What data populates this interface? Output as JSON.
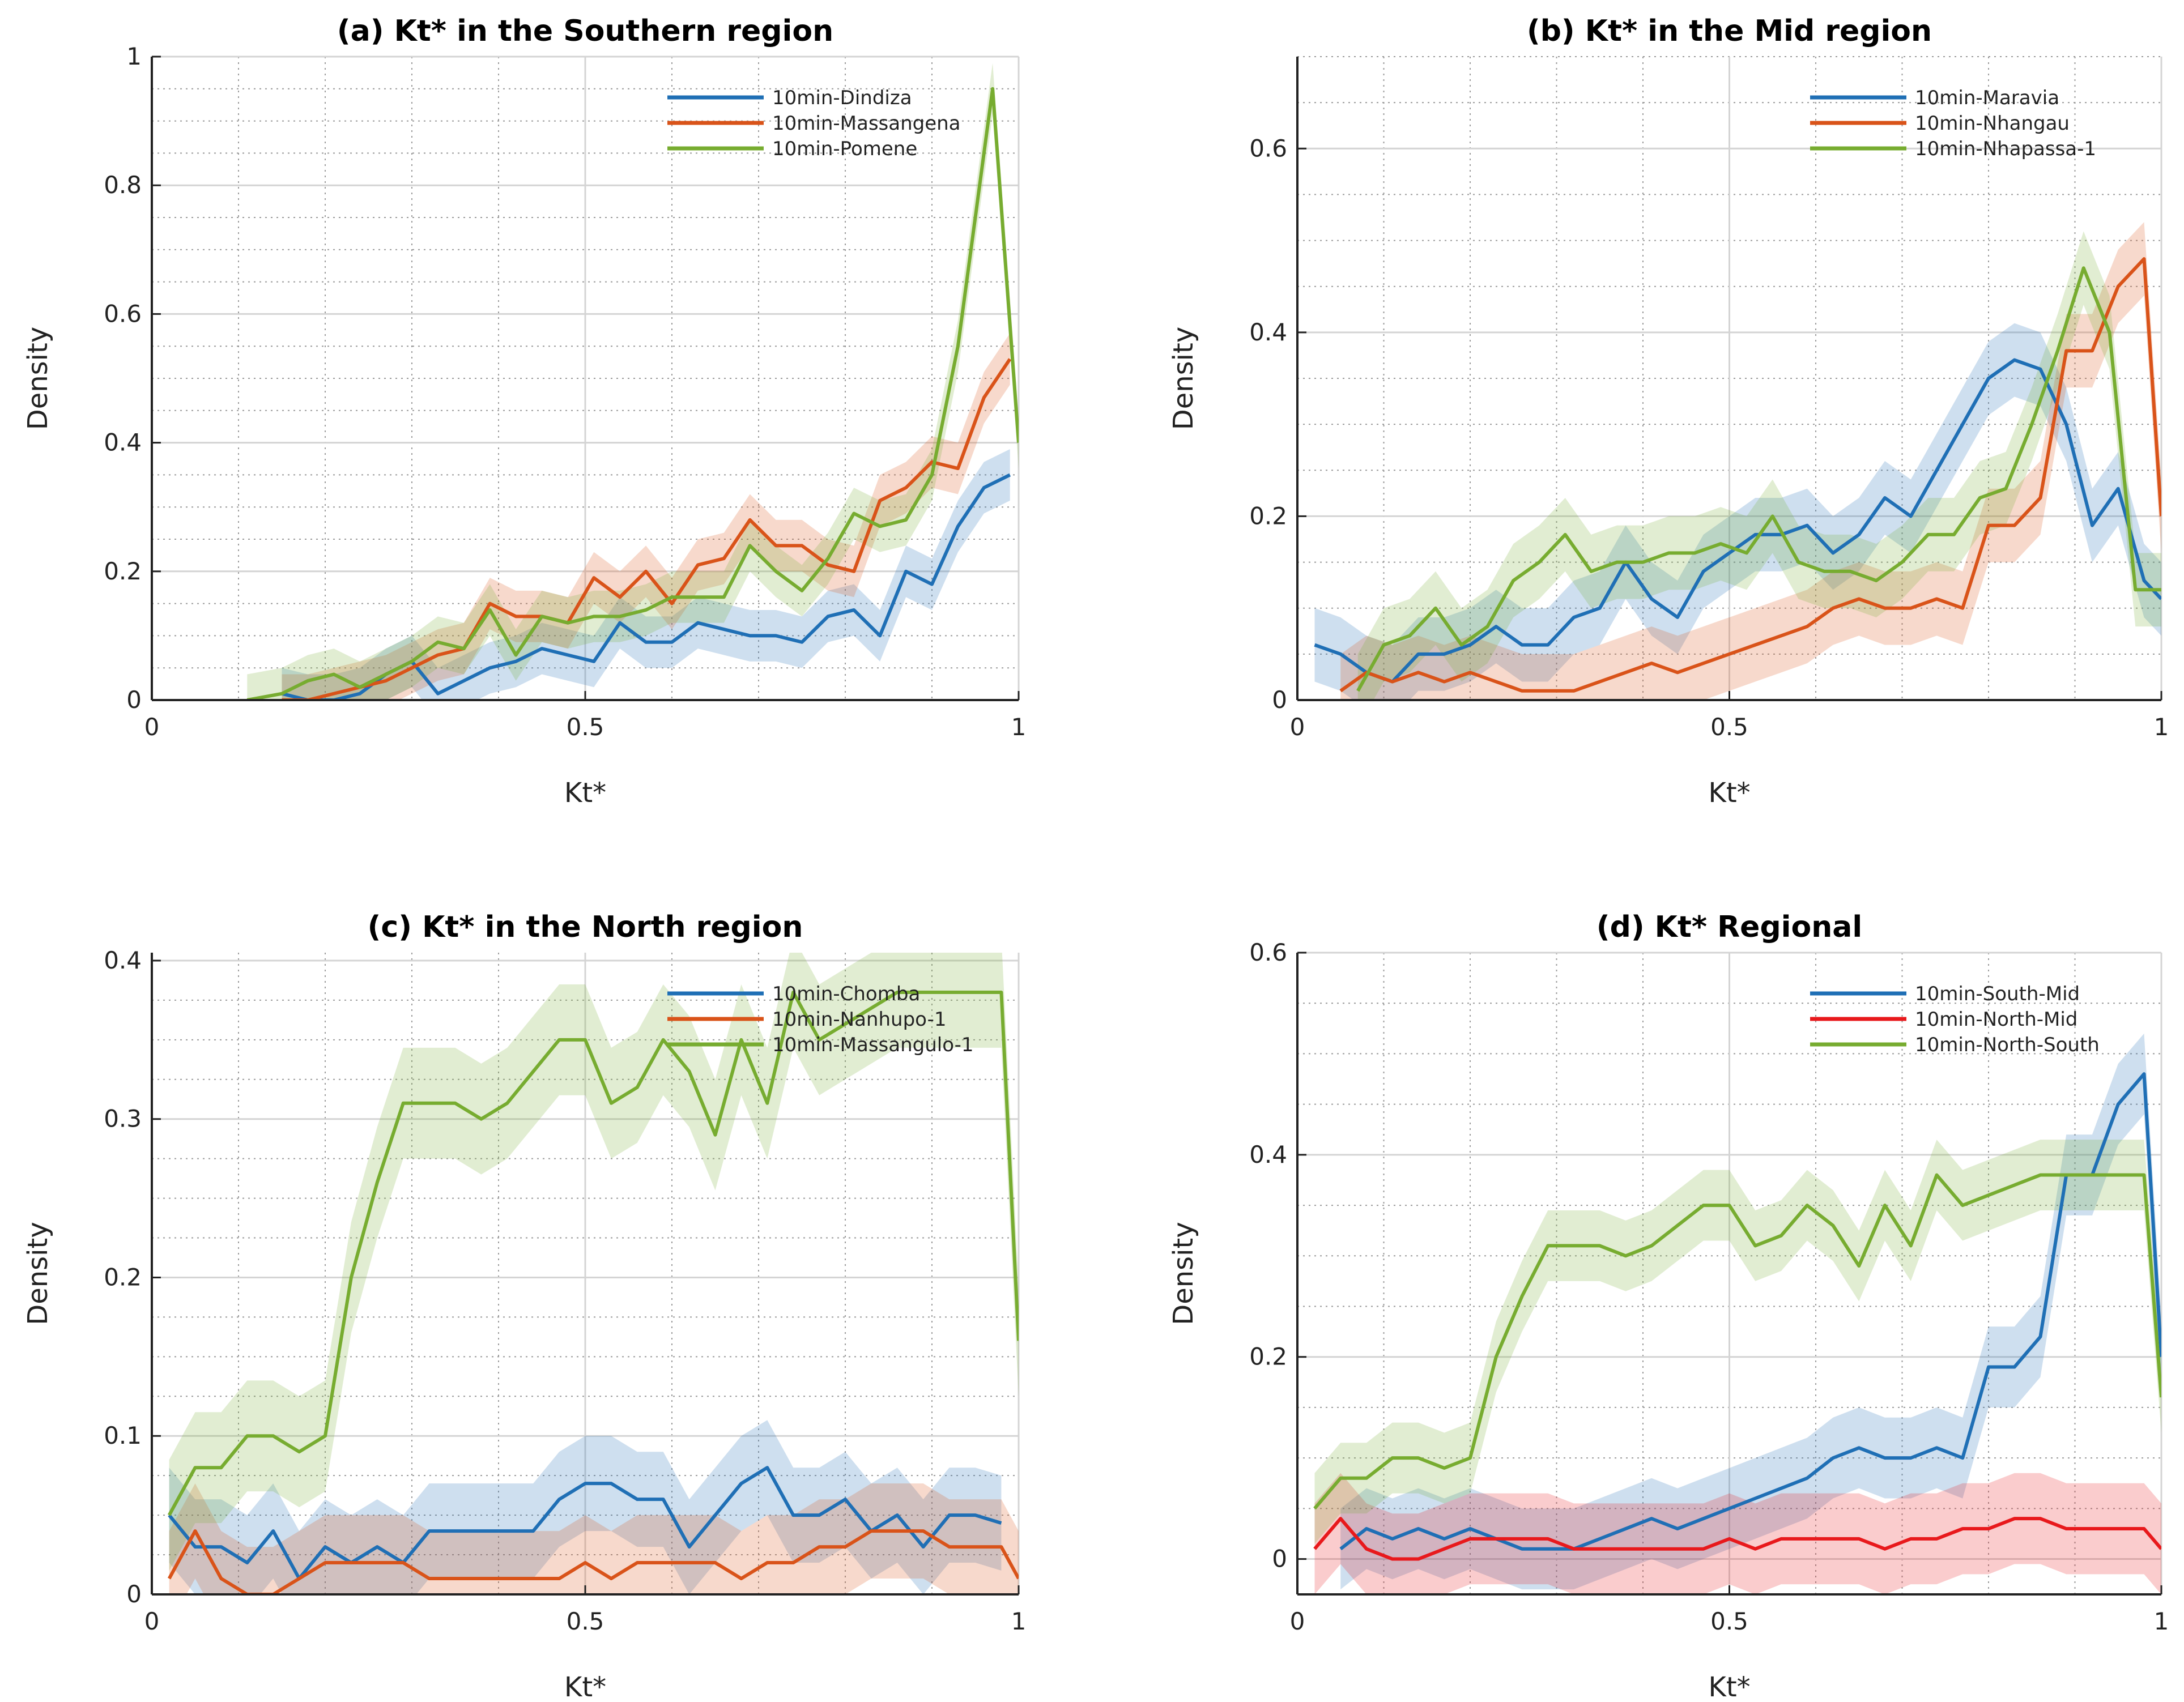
{
  "figure": {
    "panels_note": "2x2 grid of Kt* density plots with shaded confidence bands"
  },
  "chart_data": [
    {
      "type": "line",
      "title": "(a) Kt* in the Southern region",
      "xlabel": "Kt*",
      "ylabel": "Density",
      "xlim": [
        0,
        1
      ],
      "ylim": [
        0,
        1
      ],
      "xticks": [
        0,
        0.5,
        1
      ],
      "xtick_labels": [
        "0",
        "0.5",
        "1"
      ],
      "yticks": [
        0,
        0.2,
        0.4,
        0.6,
        0.8,
        1
      ],
      "ytick_labels": [
        "0",
        "0.2",
        "0.4",
        "0.6",
        "0.8",
        "1"
      ],
      "legend_position": "top-right",
      "series": [
        {
          "name": "10min-Dindiza",
          "color": "#1f6fb5",
          "band": 0.04,
          "x": [
            0.15,
            0.18,
            0.21,
            0.24,
            0.27,
            0.3,
            0.33,
            0.36,
            0.39,
            0.42,
            0.45,
            0.48,
            0.51,
            0.54,
            0.57,
            0.6,
            0.63,
            0.66,
            0.69,
            0.72,
            0.75,
            0.78,
            0.81,
            0.84,
            0.87,
            0.9,
            0.93,
            0.96,
            0.99
          ],
          "y": [
            0.01,
            0.0,
            0.0,
            0.01,
            0.04,
            0.06,
            0.01,
            0.03,
            0.05,
            0.06,
            0.08,
            0.07,
            0.06,
            0.12,
            0.09,
            0.09,
            0.12,
            0.11,
            0.1,
            0.1,
            0.09,
            0.13,
            0.14,
            0.1,
            0.2,
            0.18,
            0.27,
            0.33,
            0.35
          ]
        },
        {
          "name": "10min-Massangena",
          "color": "#d95319",
          "band": 0.04,
          "x": [
            0.15,
            0.18,
            0.21,
            0.24,
            0.27,
            0.3,
            0.33,
            0.36,
            0.39,
            0.42,
            0.45,
            0.48,
            0.51,
            0.54,
            0.57,
            0.6,
            0.63,
            0.66,
            0.69,
            0.72,
            0.75,
            0.78,
            0.81,
            0.84,
            0.87,
            0.9,
            0.93,
            0.96,
            0.99
          ],
          "y": [
            0.0,
            0.0,
            0.01,
            0.02,
            0.03,
            0.05,
            0.07,
            0.08,
            0.15,
            0.13,
            0.13,
            0.12,
            0.19,
            0.16,
            0.2,
            0.15,
            0.21,
            0.22,
            0.28,
            0.24,
            0.24,
            0.21,
            0.2,
            0.31,
            0.33,
            0.37,
            0.36,
            0.47,
            0.53
          ]
        },
        {
          "name": "10min-Pomene",
          "color": "#77ac30",
          "band": 0.04,
          "x": [
            0.11,
            0.15,
            0.18,
            0.21,
            0.24,
            0.27,
            0.3,
            0.33,
            0.36,
            0.39,
            0.42,
            0.45,
            0.48,
            0.51,
            0.54,
            0.57,
            0.6,
            0.63,
            0.66,
            0.69,
            0.72,
            0.75,
            0.78,
            0.81,
            0.84,
            0.87,
            0.9,
            0.93,
            0.97,
            1.0
          ],
          "y": [
            0.0,
            0.01,
            0.03,
            0.04,
            0.02,
            0.04,
            0.06,
            0.09,
            0.08,
            0.14,
            0.07,
            0.13,
            0.12,
            0.13,
            0.13,
            0.14,
            0.16,
            0.16,
            0.16,
            0.24,
            0.2,
            0.17,
            0.22,
            0.29,
            0.27,
            0.28,
            0.35,
            0.55,
            0.95,
            0.4
          ]
        }
      ]
    },
    {
      "type": "line",
      "title": "(b) Kt* in the Mid region",
      "xlabel": "Kt*",
      "ylabel": "Density",
      "xlim": [
        0,
        1
      ],
      "ylim": [
        0,
        0.7
      ],
      "xticks": [
        0,
        0.5,
        1
      ],
      "xtick_labels": [
        "0",
        "0.5",
        "1"
      ],
      "yticks": [
        0,
        0.2,
        0.4,
        0.6
      ],
      "ytick_labels": [
        "0",
        "0.2",
        "0.4",
        "0.6"
      ],
      "legend_position": "top-right",
      "series": [
        {
          "name": "10min-Maravia",
          "color": "#1f6fb5",
          "band": 0.04,
          "x": [
            0.02,
            0.05,
            0.08,
            0.11,
            0.14,
            0.17,
            0.2,
            0.23,
            0.26,
            0.29,
            0.32,
            0.35,
            0.38,
            0.41,
            0.44,
            0.47,
            0.5,
            0.53,
            0.56,
            0.59,
            0.62,
            0.65,
            0.68,
            0.71,
            0.74,
            0.77,
            0.8,
            0.83,
            0.86,
            0.89,
            0.92,
            0.95,
            0.98,
            1.0
          ],
          "y": [
            0.06,
            0.05,
            0.03,
            0.02,
            0.05,
            0.05,
            0.06,
            0.08,
            0.06,
            0.06,
            0.09,
            0.1,
            0.15,
            0.11,
            0.09,
            0.14,
            0.16,
            0.18,
            0.18,
            0.19,
            0.16,
            0.18,
            0.22,
            0.2,
            0.25,
            0.3,
            0.35,
            0.37,
            0.36,
            0.3,
            0.19,
            0.23,
            0.13,
            0.11
          ]
        },
        {
          "name": "10min-Nhangau",
          "color": "#d95319",
          "band": 0.04,
          "x": [
            0.05,
            0.08,
            0.11,
            0.14,
            0.17,
            0.2,
            0.23,
            0.26,
            0.29,
            0.32,
            0.35,
            0.38,
            0.41,
            0.44,
            0.47,
            0.5,
            0.53,
            0.56,
            0.59,
            0.62,
            0.65,
            0.68,
            0.71,
            0.74,
            0.77,
            0.8,
            0.83,
            0.86,
            0.89,
            0.92,
            0.95,
            0.98,
            1.0
          ],
          "y": [
            0.01,
            0.03,
            0.02,
            0.03,
            0.02,
            0.03,
            0.02,
            0.01,
            0.01,
            0.01,
            0.02,
            0.03,
            0.04,
            0.03,
            0.04,
            0.05,
            0.06,
            0.07,
            0.08,
            0.1,
            0.11,
            0.1,
            0.1,
            0.11,
            0.1,
            0.19,
            0.19,
            0.22,
            0.38,
            0.38,
            0.45,
            0.48,
            0.2
          ]
        },
        {
          "name": "10min-Nhapassa-1",
          "color": "#77ac30",
          "band": 0.04,
          "x": [
            0.07,
            0.1,
            0.13,
            0.16,
            0.19,
            0.22,
            0.25,
            0.28,
            0.31,
            0.34,
            0.37,
            0.4,
            0.43,
            0.46,
            0.49,
            0.52,
            0.55,
            0.58,
            0.61,
            0.64,
            0.67,
            0.7,
            0.73,
            0.76,
            0.79,
            0.82,
            0.85,
            0.88,
            0.91,
            0.94,
            0.97,
            1.0
          ],
          "y": [
            0.01,
            0.06,
            0.07,
            0.1,
            0.06,
            0.08,
            0.13,
            0.15,
            0.18,
            0.14,
            0.15,
            0.15,
            0.16,
            0.16,
            0.17,
            0.16,
            0.2,
            0.15,
            0.14,
            0.14,
            0.13,
            0.15,
            0.18,
            0.18,
            0.22,
            0.23,
            0.3,
            0.38,
            0.47,
            0.4,
            0.12,
            0.12
          ]
        }
      ]
    },
    {
      "type": "line",
      "title": "(c) Kt* in the North region",
      "xlabel": "Kt*",
      "ylabel": "Density",
      "xlim": [
        0,
        1
      ],
      "ylim": [
        0,
        0.405
      ],
      "xticks": [
        0,
        0.5,
        1
      ],
      "xtick_labels": [
        "0",
        "0.5",
        "1"
      ],
      "yticks": [
        0,
        0.1,
        0.2,
        0.3,
        0.4
      ],
      "ytick_labels": [
        "0",
        "0.1",
        "0.2",
        "0.3",
        "0.4"
      ],
      "legend_position": "top-right",
      "series": [
        {
          "name": "10min-Chomba",
          "color": "#1f6fb5",
          "band": 0.03,
          "x": [
            0.02,
            0.05,
            0.08,
            0.11,
            0.14,
            0.17,
            0.2,
            0.23,
            0.26,
            0.29,
            0.32,
            0.35,
            0.38,
            0.41,
            0.44,
            0.47,
            0.5,
            0.53,
            0.56,
            0.59,
            0.62,
            0.65,
            0.68,
            0.71,
            0.74,
            0.77,
            0.8,
            0.83,
            0.86,
            0.89,
            0.92,
            0.95,
            0.98
          ],
          "y": [
            0.05,
            0.03,
            0.03,
            0.02,
            0.04,
            0.01,
            0.03,
            0.02,
            0.03,
            0.02,
            0.04,
            0.04,
            0.04,
            0.04,
            0.04,
            0.06,
            0.07,
            0.07,
            0.06,
            0.06,
            0.03,
            0.05,
            0.07,
            0.08,
            0.05,
            0.05,
            0.06,
            0.04,
            0.05,
            0.03,
            0.05,
            0.05,
            0.045
          ]
        },
        {
          "name": "10min-Nanhupo-1",
          "color": "#d95319",
          "band": 0.03,
          "x": [
            0.02,
            0.05,
            0.08,
            0.11,
            0.14,
            0.17,
            0.2,
            0.23,
            0.26,
            0.29,
            0.32,
            0.35,
            0.38,
            0.41,
            0.44,
            0.47,
            0.5,
            0.53,
            0.56,
            0.59,
            0.62,
            0.65,
            0.68,
            0.71,
            0.74,
            0.77,
            0.8,
            0.83,
            0.86,
            0.89,
            0.92,
            0.95,
            0.98,
            1.0
          ],
          "y": [
            0.01,
            0.04,
            0.01,
            0.0,
            0.0,
            0.01,
            0.02,
            0.02,
            0.02,
            0.02,
            0.01,
            0.01,
            0.01,
            0.01,
            0.01,
            0.01,
            0.02,
            0.01,
            0.02,
            0.02,
            0.02,
            0.02,
            0.01,
            0.02,
            0.02,
            0.03,
            0.03,
            0.04,
            0.04,
            0.04,
            0.03,
            0.03,
            0.03,
            0.01
          ]
        },
        {
          "name": "10min-Massangulo-1",
          "color": "#77ac30",
          "band": 0.035,
          "x": [
            0.02,
            0.05,
            0.08,
            0.11,
            0.14,
            0.17,
            0.2,
            0.23,
            0.26,
            0.29,
            0.32,
            0.35,
            0.38,
            0.41,
            0.44,
            0.47,
            0.5,
            0.53,
            0.56,
            0.59,
            0.62,
            0.65,
            0.68,
            0.71,
            0.74,
            0.77,
            0.8,
            0.83,
            0.86,
            0.89,
            0.92,
            0.95,
            0.98,
            1.0
          ],
          "y": [
            0.05,
            0.08,
            0.08,
            0.1,
            0.1,
            0.09,
            0.1,
            0.2,
            0.26,
            0.31,
            0.31,
            0.31,
            0.3,
            0.31,
            0.33,
            0.35,
            0.35,
            0.31,
            0.32,
            0.35,
            0.33,
            0.29,
            0.35,
            0.31,
            0.38,
            0.35,
            0.36,
            0.37,
            0.38,
            0.38,
            0.38,
            0.38,
            0.38,
            0.16
          ]
        }
      ]
    },
    {
      "type": "line",
      "title": "(d) Kt* Regional",
      "xlabel": "Kt*",
      "ylabel": "Density",
      "xlim": [
        0,
        1
      ],
      "ylim": [
        -0.035,
        0.6
      ],
      "xticks": [
        0,
        0.5,
        1
      ],
      "xtick_labels": [
        "0",
        "0.5",
        "1"
      ],
      "yticks": [
        0,
        0.2,
        0.4,
        0.6
      ],
      "ytick_labels": [
        "0",
        "0.2",
        "0.4",
        "0.6"
      ],
      "legend_position": "top-right",
      "series": [
        {
          "name": "10min-South-Mid",
          "color": "#1f6fb5",
          "band": 0.04,
          "x": [
            0.05,
            0.08,
            0.11,
            0.14,
            0.17,
            0.2,
            0.23,
            0.26,
            0.29,
            0.32,
            0.35,
            0.38,
            0.41,
            0.44,
            0.47,
            0.5,
            0.53,
            0.56,
            0.59,
            0.62,
            0.65,
            0.68,
            0.71,
            0.74,
            0.77,
            0.8,
            0.83,
            0.86,
            0.89,
            0.92,
            0.95,
            0.98,
            1.0
          ],
          "y": [
            0.01,
            0.03,
            0.02,
            0.03,
            0.02,
            0.03,
            0.02,
            0.01,
            0.01,
            0.01,
            0.02,
            0.03,
            0.04,
            0.03,
            0.04,
            0.05,
            0.06,
            0.07,
            0.08,
            0.1,
            0.11,
            0.1,
            0.1,
            0.11,
            0.1,
            0.19,
            0.19,
            0.22,
            0.38,
            0.38,
            0.45,
            0.48,
            0.2
          ]
        },
        {
          "name": "10min-North-Mid",
          "color": "#e8191c",
          "band": 0.045,
          "x": [
            0.02,
            0.05,
            0.08,
            0.11,
            0.14,
            0.17,
            0.2,
            0.23,
            0.26,
            0.29,
            0.32,
            0.35,
            0.38,
            0.41,
            0.44,
            0.47,
            0.5,
            0.53,
            0.56,
            0.59,
            0.62,
            0.65,
            0.68,
            0.71,
            0.74,
            0.77,
            0.8,
            0.83,
            0.86,
            0.89,
            0.92,
            0.95,
            0.98,
            1.0
          ],
          "y": [
            0.01,
            0.04,
            0.01,
            0.0,
            0.0,
            0.01,
            0.02,
            0.02,
            0.02,
            0.02,
            0.01,
            0.01,
            0.01,
            0.01,
            0.01,
            0.01,
            0.02,
            0.01,
            0.02,
            0.02,
            0.02,
            0.02,
            0.01,
            0.02,
            0.02,
            0.03,
            0.03,
            0.04,
            0.04,
            0.03,
            0.03,
            0.03,
            0.03,
            0.01
          ]
        },
        {
          "name": "10min-North-South",
          "color": "#77ac30",
          "band": 0.035,
          "x": [
            0.02,
            0.05,
            0.08,
            0.11,
            0.14,
            0.17,
            0.2,
            0.23,
            0.26,
            0.29,
            0.32,
            0.35,
            0.38,
            0.41,
            0.44,
            0.47,
            0.5,
            0.53,
            0.56,
            0.59,
            0.62,
            0.65,
            0.68,
            0.71,
            0.74,
            0.77,
            0.8,
            0.83,
            0.86,
            0.89,
            0.92,
            0.95,
            0.98,
            1.0
          ],
          "y": [
            0.05,
            0.08,
            0.08,
            0.1,
            0.1,
            0.09,
            0.1,
            0.2,
            0.26,
            0.31,
            0.31,
            0.31,
            0.3,
            0.31,
            0.33,
            0.35,
            0.35,
            0.31,
            0.32,
            0.35,
            0.33,
            0.29,
            0.35,
            0.31,
            0.38,
            0.35,
            0.36,
            0.37,
            0.38,
            0.38,
            0.38,
            0.38,
            0.38,
            0.16
          ]
        }
      ]
    }
  ]
}
